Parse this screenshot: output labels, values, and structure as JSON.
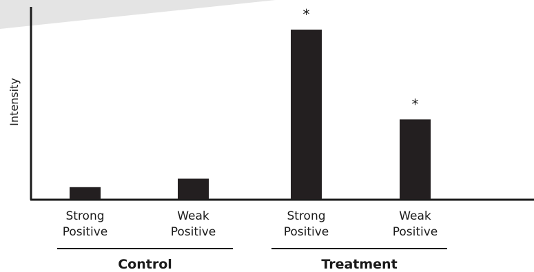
{
  "chart_data": {
    "type": "bar",
    "title": "",
    "xlabel": "",
    "ylabel": "Intensity",
    "ylim": [
      0,
      100
    ],
    "grid": false,
    "bar_color": "#231f20",
    "categories": [
      {
        "line1": "Strong",
        "line2": "Positive"
      },
      {
        "line1": "Weak",
        "line2": "Positive"
      },
      {
        "line1": "Strong",
        "line2": "Positive"
      },
      {
        "line1": "Weak",
        "line2": "Positive"
      }
    ],
    "values": [
      7,
      12,
      100,
      47
    ],
    "significance": [
      "",
      "",
      "*",
      "*"
    ],
    "groups": [
      {
        "label": "Control",
        "members": [
          0,
          1
        ]
      },
      {
        "label": "Treatment",
        "members": [
          2,
          3
        ]
      }
    ]
  }
}
